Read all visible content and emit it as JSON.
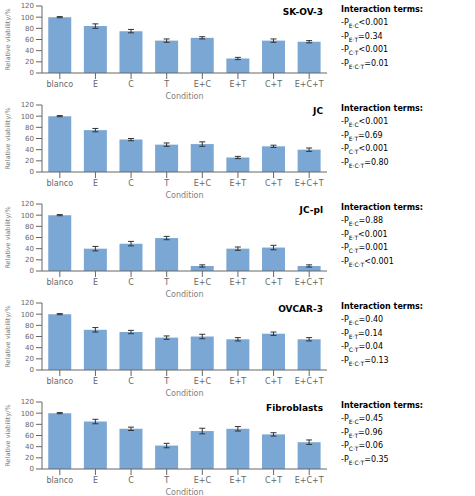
{
  "chart_data": [
    {
      "type": "bar",
      "title": "SK-OV-3",
      "categories": [
        "blanco",
        "E",
        "C",
        "T",
        "E+C",
        "E+T",
        "C+T",
        "E+C+T"
      ],
      "values": [
        100,
        84,
        75,
        58,
        63,
        26,
        58,
        56
      ],
      "errors": [
        1,
        4,
        3,
        3,
        2,
        2,
        3,
        2
      ],
      "xlabel": "Condition",
      "ylabel": "Relative viability/%",
      "ylim": [
        0,
        120
      ],
      "yticks": [
        0,
        20,
        40,
        60,
        80,
        100,
        120
      ],
      "color": "#7ba7d4",
      "annotations": [
        "Interaction terms:",
        "-PE·C<0.001",
        "-PE·T=0.34",
        "-PC·T<0.001",
        "-PE·C·T=0.01"
      ]
    },
    {
      "type": "bar",
      "title": "JC",
      "categories": [
        "blanco",
        "E",
        "C",
        "T",
        "E+C",
        "E+T",
        "C+T",
        "E+C+T"
      ],
      "values": [
        100,
        75,
        58,
        49,
        50,
        26,
        46,
        40
      ],
      "errors": [
        1,
        3,
        2,
        3,
        4,
        2,
        2,
        3
      ],
      "xlabel": "Condition",
      "ylabel": "Relative viability/%",
      "ylim": [
        0,
        120
      ],
      "yticks": [
        0,
        20,
        40,
        60,
        80,
        100,
        120
      ],
      "color": "#7ba7d4",
      "annotations": [
        "Interaction terms:",
        "-PE·C<0.001",
        "-PE·T=0.69",
        "-PC·T<0.001",
        "-PE·C·T=0.80"
      ]
    },
    {
      "type": "bar",
      "title": "JC-pl",
      "categories": [
        "blanco",
        "E",
        "C",
        "T",
        "E+C",
        "E+T",
        "C+T",
        "E+C+T"
      ],
      "values": [
        100,
        40,
        49,
        59,
        9,
        40,
        42,
        9
      ],
      "errors": [
        1,
        4,
        4,
        3,
        2,
        3,
        4,
        2
      ],
      "xlabel": "Condition",
      "ylabel": "Relative viability/%",
      "ylim": [
        0,
        120
      ],
      "yticks": [
        0,
        20,
        40,
        60,
        80,
        100,
        120
      ],
      "color": "#7ba7d4",
      "annotations": [
        "Interaction terms:",
        "-PE·C=0.88",
        "-PE·T<0.001",
        "-PC·T=0.001",
        "-PE·C·T<0.001"
      ]
    },
    {
      "type": "bar",
      "title": "OVCAR-3",
      "categories": [
        "blanco",
        "E",
        "C",
        "T",
        "E+C",
        "E+T",
        "C+T",
        "E+C+T"
      ],
      "values": [
        100,
        72,
        68,
        58,
        60,
        55,
        65,
        55
      ],
      "errors": [
        1,
        4,
        3,
        3,
        4,
        3,
        3,
        3
      ],
      "xlabel": "Condition",
      "ylabel": "Relative viability/%",
      "ylim": [
        0,
        120
      ],
      "yticks": [
        0,
        20,
        40,
        60,
        80,
        100,
        120
      ],
      "color": "#7ba7d4",
      "annotations": [
        "Interaction terms:",
        "-PE·C=0.40",
        "-PE·T=0.14",
        "-PC·T=0.04",
        "-PE·C·T=0.13"
      ]
    },
    {
      "type": "bar",
      "title": "Fibroblasts",
      "categories": [
        "blanco",
        "E",
        "C",
        "T",
        "E+C",
        "E+T",
        "C+T",
        "E+C+T"
      ],
      "values": [
        100,
        85,
        72,
        42,
        68,
        72,
        62,
        48
      ],
      "errors": [
        1,
        4,
        3,
        4,
        5,
        4,
        3,
        4
      ],
      "xlabel": "Condition",
      "ylabel": "Relative viability/%",
      "ylim": [
        0,
        120
      ],
      "yticks": [
        0,
        20,
        40,
        60,
        80,
        100,
        120
      ],
      "color": "#7ba7d4",
      "annotations": [
        "Interaction terms:",
        "-PE·C=0.45",
        "-PE·T=0.96",
        "-PC·T=0.06",
        "-PE·C·T=0.35"
      ]
    }
  ]
}
